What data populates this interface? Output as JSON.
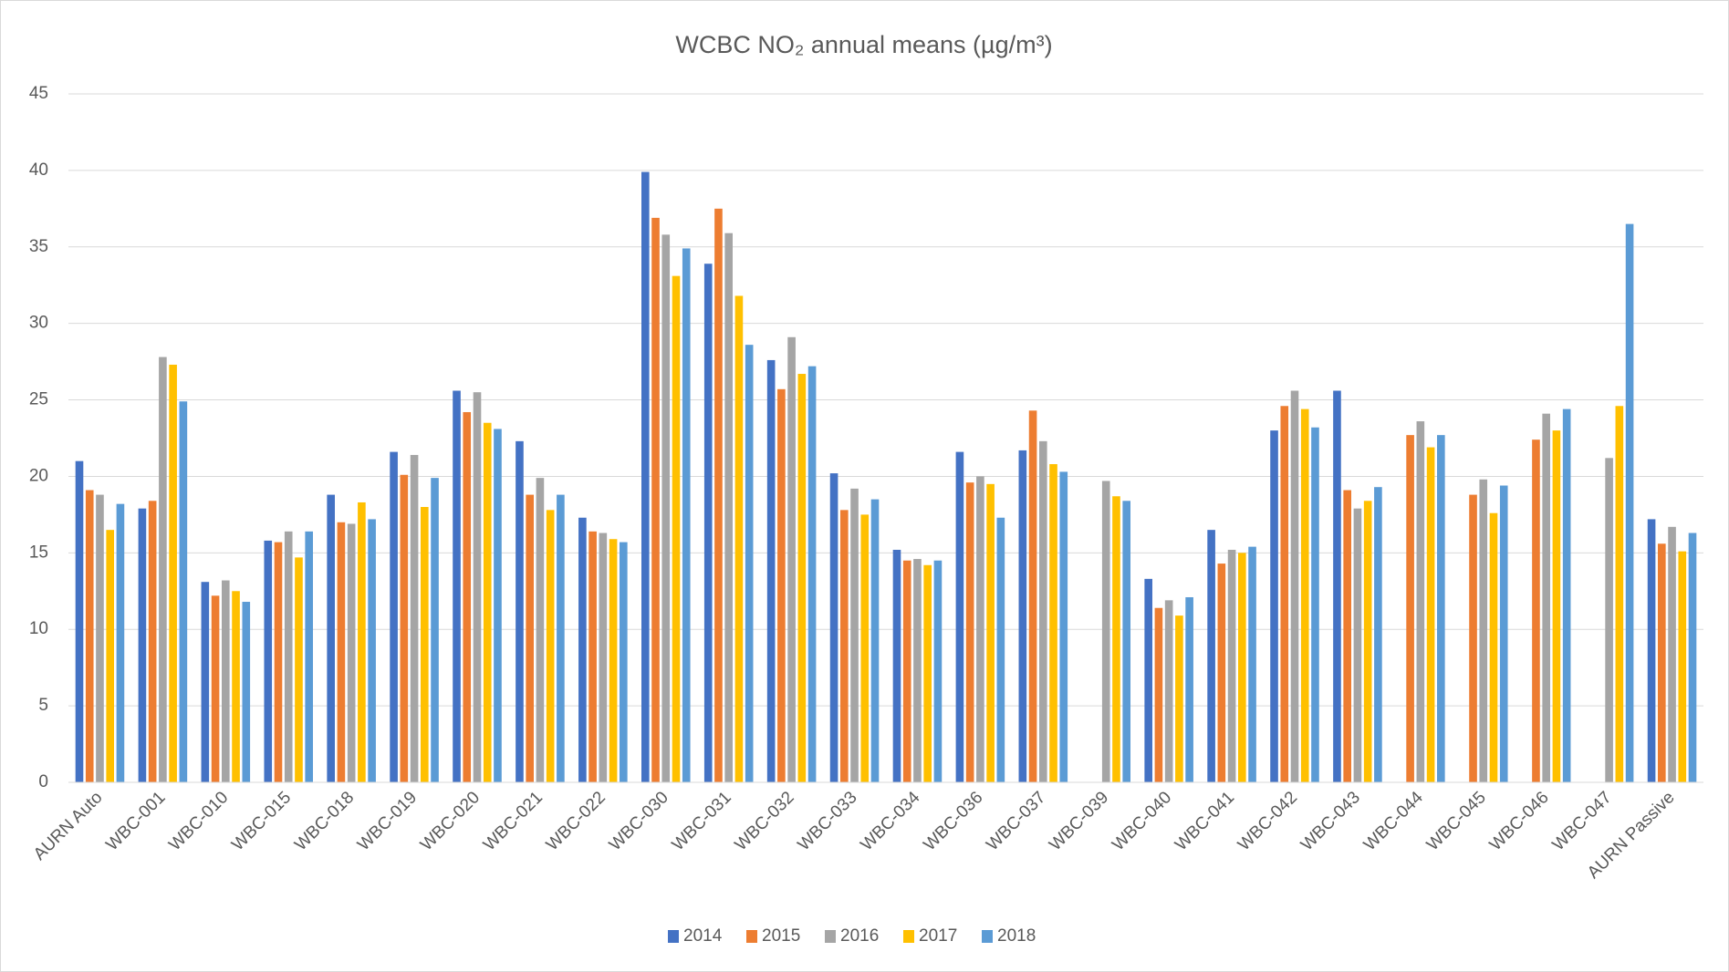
{
  "chart_data": {
    "type": "bar",
    "title": "WCBC NO₂ annual means (µg/m³)",
    "categories": [
      "AURN Auto",
      "WBC-001",
      "WBC-010",
      "WBC-015",
      "WBC-018",
      "WBC-019",
      "WBC-020",
      "WBC-021",
      "WBC-022",
      "WBC-030",
      "WBC-031",
      "WBC-032",
      "WBC-033",
      "WBC-034",
      "WBC-036",
      "WBC-037",
      "WBC-039",
      "WBC-040",
      "WBC-041",
      "WBC-042",
      "WBC-043",
      "WBC-044",
      "WBC-045",
      "WBC-046",
      "WBC-047",
      "AURN Passive"
    ],
    "series": [
      {
        "name": "2014",
        "color": "#4472c4",
        "values": [
          21.0,
          17.9,
          13.1,
          15.8,
          18.8,
          21.6,
          25.6,
          22.3,
          17.3,
          39.9,
          33.9,
          27.6,
          20.2,
          15.2,
          21.6,
          21.7,
          null,
          13.3,
          16.5,
          23.0,
          25.6,
          null,
          null,
          null,
          null,
          17.2
        ]
      },
      {
        "name": "2015",
        "color": "#ed7d31",
        "values": [
          19.1,
          18.4,
          12.2,
          15.7,
          17.0,
          20.1,
          24.2,
          18.8,
          16.4,
          36.9,
          37.5,
          25.7,
          17.8,
          14.5,
          19.6,
          24.3,
          null,
          11.4,
          14.3,
          24.6,
          19.1,
          22.7,
          18.8,
          22.4,
          null,
          15.6
        ]
      },
      {
        "name": "2016",
        "color": "#a5a5a5",
        "values": [
          18.8,
          27.8,
          13.2,
          16.4,
          16.9,
          21.4,
          25.5,
          19.9,
          16.3,
          35.8,
          35.9,
          29.1,
          19.2,
          14.6,
          20.0,
          22.3,
          19.7,
          11.9,
          15.2,
          25.6,
          17.9,
          23.6,
          19.8,
          24.1,
          21.2,
          16.7
        ]
      },
      {
        "name": "2017",
        "color": "#ffc000",
        "values": [
          16.5,
          27.3,
          12.5,
          14.7,
          18.3,
          18.0,
          23.5,
          17.8,
          15.9,
          33.1,
          31.8,
          26.7,
          17.5,
          14.2,
          19.5,
          20.8,
          18.7,
          10.9,
          15.0,
          24.4,
          18.4,
          21.9,
          17.6,
          23.0,
          24.6,
          15.1
        ]
      },
      {
        "name": "2018",
        "color": "#5b9bd5",
        "values": [
          18.2,
          24.9,
          11.8,
          16.4,
          17.2,
          19.9,
          23.1,
          18.8,
          15.7,
          34.9,
          28.6,
          27.2,
          18.5,
          14.5,
          17.3,
          20.3,
          18.4,
          12.1,
          15.4,
          23.2,
          19.3,
          22.7,
          19.4,
          24.4,
          36.5,
          16.3
        ]
      }
    ],
    "ylim": [
      0,
      45
    ],
    "yticks": [
      0,
      5,
      10,
      15,
      20,
      25,
      30,
      35,
      40,
      45
    ],
    "grid": true,
    "legend": "bottom"
  }
}
